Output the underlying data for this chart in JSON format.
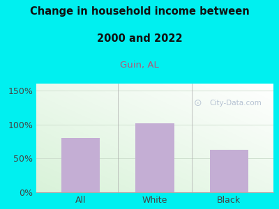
{
  "categories": [
    "All",
    "White",
    "Black"
  ],
  "values": [
    80,
    102,
    63
  ],
  "bar_color": "#c4aed4",
  "title_line1": "Change in household income between",
  "title_line2": "2000 and 2022",
  "subtitle": "Guin, AL",
  "subtitle_color": "#b05878",
  "title_color": "#111111",
  "background_color": "#00f0f0",
  "ylabel_ticks": [
    0,
    50,
    100,
    150
  ],
  "ylim": [
    0,
    160
  ],
  "tick_label_color": "#444444",
  "grid_color": "#ccddcc",
  "watermark_text": "City-Data.com",
  "watermark_color": "#aab8cc",
  "bar_width": 0.52
}
